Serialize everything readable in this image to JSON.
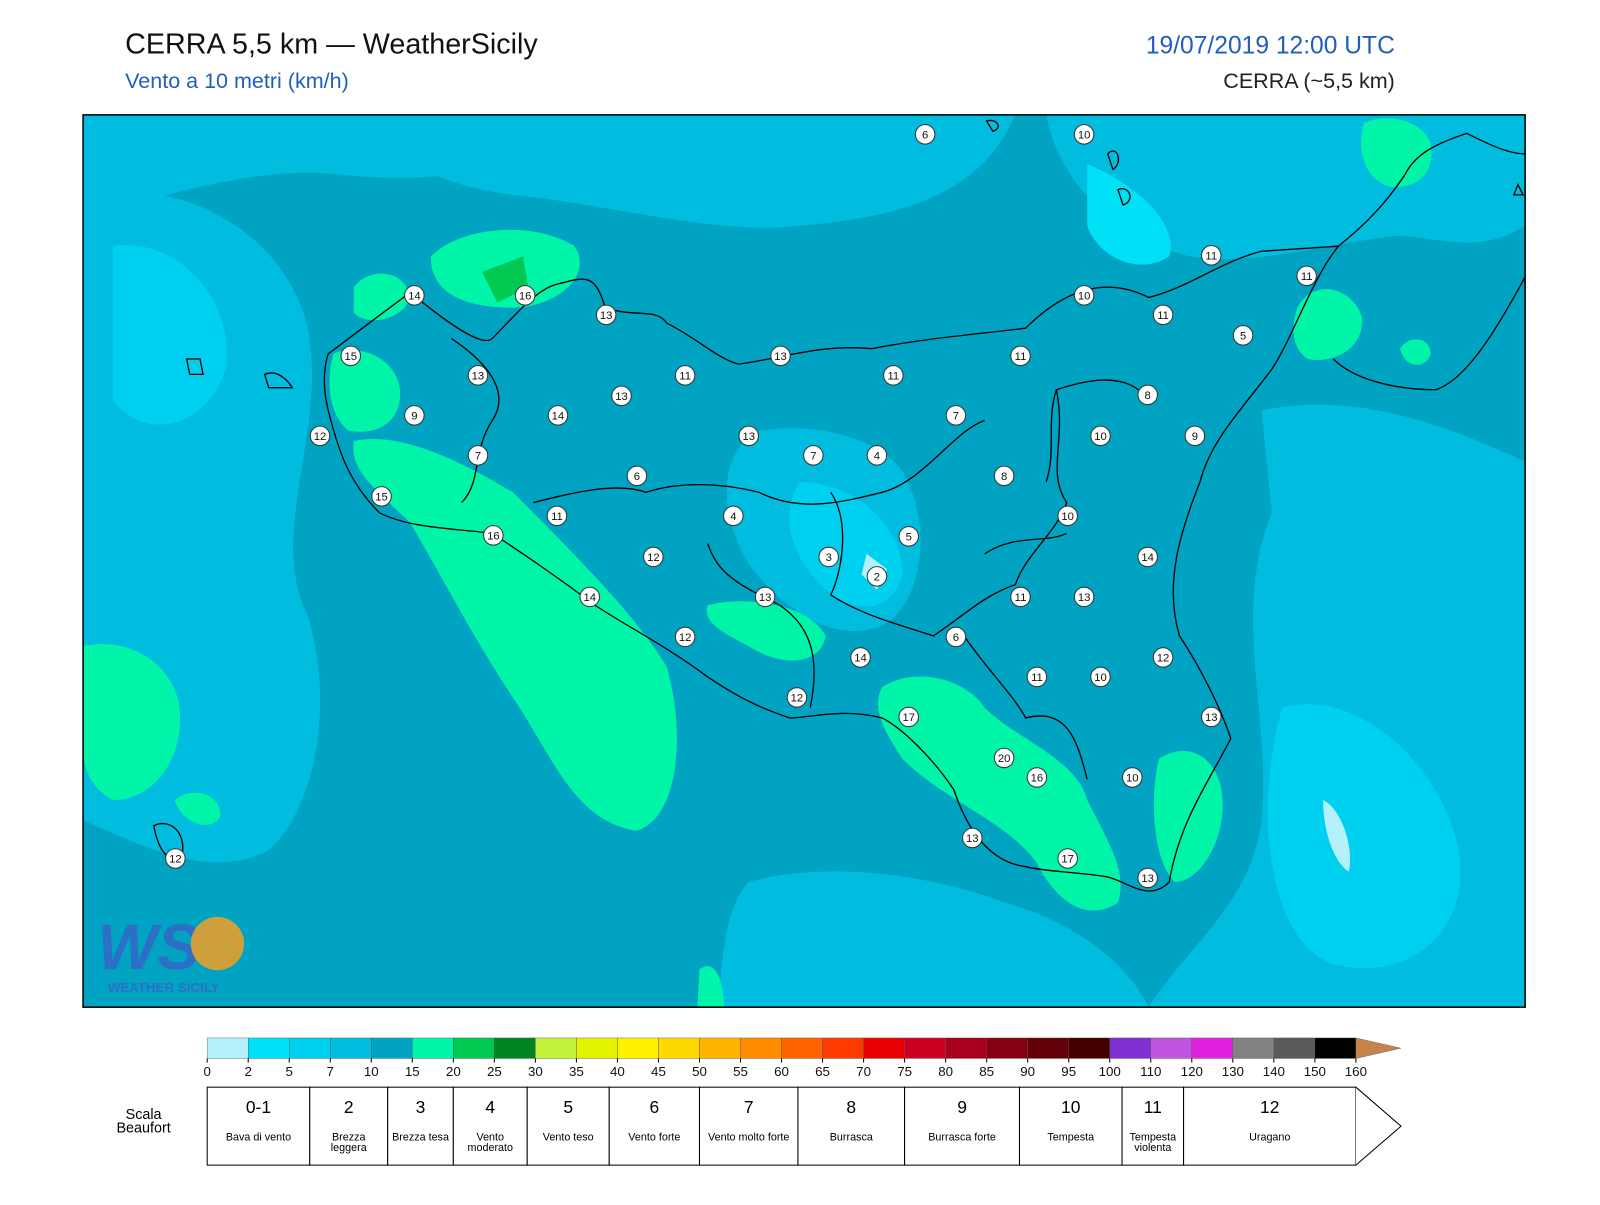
{
  "header": {
    "title": "CERRA 5,5 km — WeatherSicily",
    "subtitle": "Vento a 10 metri (km/h)",
    "datetime": "19/07/2019 12:00 UTC",
    "model": "CERRA (~5,5 km)"
  },
  "logo": {
    "mark": "WS",
    "text": "WEATHER SICILY"
  },
  "stations": [
    6,
    10,
    11,
    11,
    14,
    16,
    13,
    10,
    11,
    5,
    15,
    13,
    11,
    13,
    11,
    11,
    13,
    9,
    14,
    7,
    8,
    12,
    7,
    13,
    7,
    4,
    10,
    9,
    6,
    8,
    15,
    11,
    4,
    10,
    16,
    5,
    12,
    3,
    14,
    2,
    14,
    13,
    11,
    13,
    6,
    12,
    14,
    12,
    11,
    10,
    12,
    17,
    13,
    20,
    16,
    10,
    13,
    17,
    13,
    12
  ],
  "colorbar": {
    "ticks": [
      0,
      2,
      5,
      7,
      10,
      15,
      20,
      25,
      30,
      35,
      40,
      45,
      50,
      55,
      60,
      65,
      70,
      75,
      80,
      85,
      90,
      95,
      100,
      110,
      120,
      130,
      140,
      150,
      160
    ],
    "colors": [
      "#b4f1fb",
      "#00e0f6",
      "#00d0ef",
      "#00bcdf",
      "#00a3c2",
      "#00f5a8",
      "#00c850",
      "#008522",
      "#c2f23c",
      "#e2f200",
      "#fff200",
      "#ffd800",
      "#ffb400",
      "#ff8c00",
      "#ff6400",
      "#ff3a00",
      "#e80000",
      "#cc0022",
      "#a8001c",
      "#860012",
      "#640008",
      "#420000",
      "#7e30d0",
      "#c056e0",
      "#e022e0",
      "#828282",
      "#5a5a5a",
      "#000000",
      "#86482a",
      "#c88448"
    ]
  },
  "beaufort": {
    "label": "Scala Beaufort",
    "levels": [
      {
        "force": "0-1",
        "desc": "Bava di vento"
      },
      {
        "force": "2",
        "desc": "Brezza leggera"
      },
      {
        "force": "3",
        "desc": "Brezza tesa"
      },
      {
        "force": "4",
        "desc": "Vento moderato"
      },
      {
        "force": "5",
        "desc": "Vento teso"
      },
      {
        "force": "6",
        "desc": "Vento forte"
      },
      {
        "force": "7",
        "desc": "Vento molto forte"
      },
      {
        "force": "8",
        "desc": "Burrasca"
      },
      {
        "force": "9",
        "desc": "Burrasca forte"
      },
      {
        "force": "10",
        "desc": "Tempesta"
      },
      {
        "force": "11",
        "desc": "Tempesta violenta"
      },
      {
        "force": "12",
        "desc": "Uragano"
      }
    ]
  }
}
